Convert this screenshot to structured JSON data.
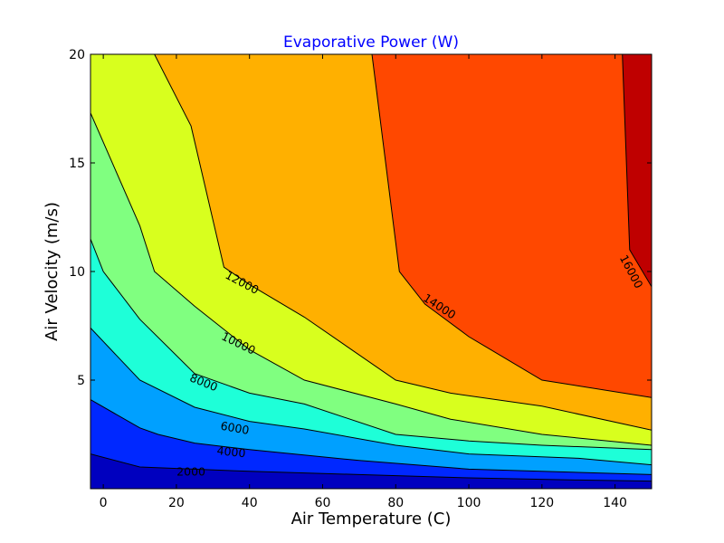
{
  "chart_data": {
    "type": "contourf",
    "title": "Evaporative Power (W)",
    "title_color": "#0000ff",
    "xlabel": "Air Temperature (C)",
    "ylabel": "Air Velocity (m/s)",
    "xlim": [
      -3.5,
      150
    ],
    "ylim": [
      0,
      20
    ],
    "xticks": [
      0,
      20,
      40,
      60,
      80,
      100,
      120,
      140
    ],
    "yticks": [
      5,
      10,
      15,
      20
    ],
    "grid": false,
    "levels": [
      {
        "level": 0,
        "fill": "#0000bf"
      },
      {
        "level": 2000,
        "fill": "#0028ff"
      },
      {
        "level": 4000,
        "fill": "#00a0ff"
      },
      {
        "level": 6000,
        "fill": "#1effd8"
      },
      {
        "level": 8000,
        "fill": "#80ff80"
      },
      {
        "level": 10000,
        "fill": "#d8ff1e"
      },
      {
        "level": 12000,
        "fill": "#ffb000"
      },
      {
        "level": 14000,
        "fill": "#ff4800"
      },
      {
        "level": 16000,
        "fill": "#bf0000"
      }
    ],
    "contours": [
      {
        "level": 2000,
        "label": "2000",
        "points": [
          [
            -3.5,
            1.6
          ],
          [
            10,
            1.0
          ],
          [
            40,
            0.8
          ],
          [
            70,
            0.65
          ],
          [
            100,
            0.5
          ],
          [
            130,
            0.4
          ],
          [
            150,
            0.35
          ]
        ]
      },
      {
        "level": 4000,
        "label": "4000",
        "points": [
          [
            -3.5,
            4.1
          ],
          [
            10,
            2.8
          ],
          [
            15,
            2.5
          ],
          [
            25,
            2.1
          ],
          [
            40,
            1.8
          ],
          [
            70,
            1.3
          ],
          [
            100,
            0.9
          ],
          [
            130,
            0.75
          ],
          [
            150,
            0.65
          ]
        ]
      },
      {
        "level": 6000,
        "label": "6000",
        "points": [
          [
            -3.5,
            7.4
          ],
          [
            10,
            5.0
          ],
          [
            25,
            3.75
          ],
          [
            40,
            3.1
          ],
          [
            55,
            2.75
          ],
          [
            80,
            2.0
          ],
          [
            100,
            1.6
          ],
          [
            130,
            1.4
          ],
          [
            150,
            1.1
          ]
        ]
      },
      {
        "level": 8000,
        "label": "8000",
        "points": [
          [
            -3.5,
            11.5
          ],
          [
            0,
            10.0
          ],
          [
            10,
            7.8
          ],
          [
            25,
            5.3
          ],
          [
            40,
            4.4
          ],
          [
            55,
            3.9
          ],
          [
            80,
            2.5
          ],
          [
            100,
            2.2
          ],
          [
            120,
            2.0
          ],
          [
            150,
            1.8
          ]
        ]
      },
      {
        "level": 10000,
        "label": "10000",
        "points": [
          [
            -3.5,
            17.3
          ],
          [
            10,
            12.1
          ],
          [
            14,
            10.0
          ],
          [
            25,
            8.4
          ],
          [
            40,
            6.4
          ],
          [
            55,
            5.0
          ],
          [
            80,
            3.9
          ],
          [
            95,
            3.2
          ],
          [
            120,
            2.5
          ],
          [
            150,
            2.0
          ]
        ]
      },
      {
        "level": 12000,
        "label": "12000",
        "points": [
          [
            14,
            20.0
          ],
          [
            24,
            16.7
          ],
          [
            33,
            10.2
          ],
          [
            40,
            9.4
          ],
          [
            55,
            7.9
          ],
          [
            80,
            5.0
          ],
          [
            95,
            4.4
          ],
          [
            120,
            3.8
          ],
          [
            150,
            2.7
          ]
        ]
      },
      {
        "level": 14000,
        "label": "14000",
        "points": [
          [
            73.5,
            20.0
          ],
          [
            81,
            10.0
          ],
          [
            88,
            8.5
          ],
          [
            100,
            7.0
          ],
          [
            120,
            5.0
          ],
          [
            150,
            4.2
          ]
        ]
      },
      {
        "level": 16000,
        "label": "16000",
        "points": [
          [
            142,
            20.0
          ],
          [
            144,
            11.0
          ],
          [
            150,
            9.3
          ]
        ]
      }
    ],
    "contour_labels": [
      {
        "text": "2000",
        "x": 24,
        "y": 0.8,
        "rotation": 0
      },
      {
        "text": "4000",
        "x": 35,
        "y": 1.7,
        "rotation": 6
      },
      {
        "text": "6000",
        "x": 36,
        "y": 2.8,
        "rotation": 10
      },
      {
        "text": "8000",
        "x": 27.5,
        "y": 4.9,
        "rotation": 22
      },
      {
        "text": "10000",
        "x": 37,
        "y": 6.7,
        "rotation": 26
      },
      {
        "text": "12000",
        "x": 38,
        "y": 9.5,
        "rotation": 28
      },
      {
        "text": "14000",
        "x": 92,
        "y": 8.4,
        "rotation": 33
      },
      {
        "text": "16000",
        "x": 144.5,
        "y": 10.0,
        "rotation": 62
      }
    ]
  }
}
